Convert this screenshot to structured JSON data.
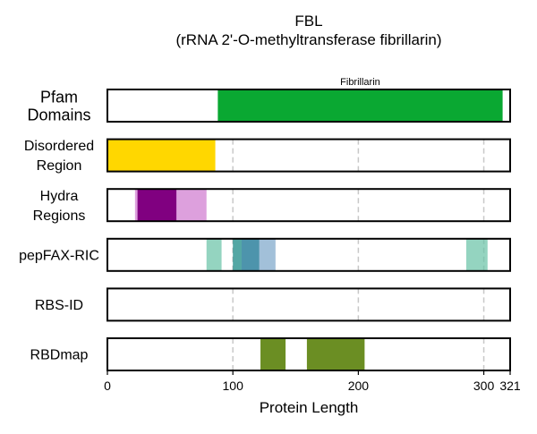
{
  "chart_data": {
    "type": "bar",
    "title": "FBL",
    "subtitle": "(rRNA 2'-O-methyltransferase fibrillarin)",
    "xlabel": "Protein Length",
    "xlim": [
      0,
      321
    ],
    "xticks": [
      0,
      100,
      200,
      300,
      321
    ],
    "xtick_labels": [
      "0",
      "100",
      "200",
      "300",
      "321"
    ],
    "gridlines_at": [
      100,
      200,
      300
    ],
    "tracks": [
      {
        "label": "Pfam\nDomains",
        "segments": [
          {
            "start": 88,
            "end": 315,
            "color": "#0aa832",
            "opacity": 1,
            "label": "Fibrillarin"
          }
        ]
      },
      {
        "label": "Disordered\nRegion",
        "segments": [
          {
            "start": 0,
            "end": 86,
            "color": "#ffd700",
            "opacity": 1
          }
        ]
      },
      {
        "label": "Hydra\nRegions",
        "segments": [
          {
            "start": 22,
            "end": 79,
            "color": "#dda0dd",
            "opacity": 1
          },
          {
            "start": 24,
            "end": 55,
            "color": "#800080",
            "opacity": 1
          }
        ]
      },
      {
        "label": "pepFAX-RIC",
        "segments": [
          {
            "start": 79,
            "end": 91,
            "color": "#66c2a5",
            "opacity": 0.7
          },
          {
            "start": 100,
            "end": 121,
            "color": "#1b8a85",
            "opacity": 0.75
          },
          {
            "start": 107,
            "end": 134,
            "color": "#4682b4",
            "opacity": 0.5
          },
          {
            "start": 286,
            "end": 303,
            "color": "#66c2a5",
            "opacity": 0.7
          }
        ]
      },
      {
        "label": "RBS-ID",
        "segments": []
      },
      {
        "label": "RBDmap",
        "segments": [
          {
            "start": 122,
            "end": 142,
            "color": "#6b8e23",
            "opacity": 1
          },
          {
            "start": 159,
            "end": 205,
            "color": "#6b8e23",
            "opacity": 1
          }
        ]
      }
    ]
  }
}
